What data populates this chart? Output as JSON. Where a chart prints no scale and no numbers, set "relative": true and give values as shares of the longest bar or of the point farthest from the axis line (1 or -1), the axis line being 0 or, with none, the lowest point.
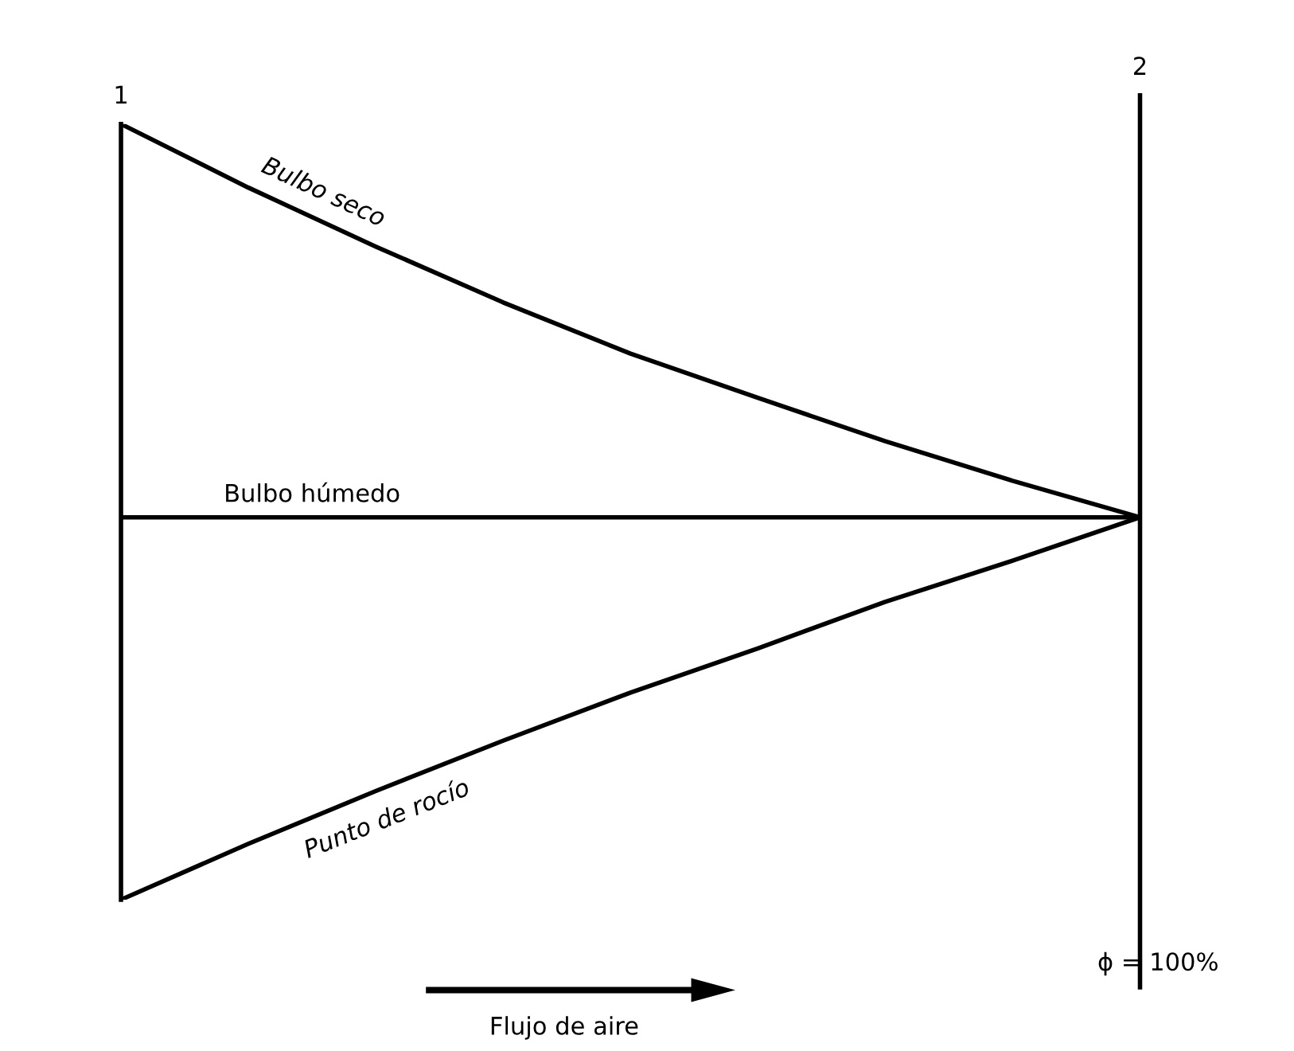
{
  "chart_data": {
    "type": "line",
    "relative": true,
    "tick_labels": false,
    "legend": false,
    "marker": "none",
    "line_style": "solid",
    "categories": [
      null,
      null,
      null,
      null,
      null,
      null,
      null,
      null,
      null
    ],
    "series": [
      {
        "name": "Bulbo seco",
        "color": "#000000",
        "values": [
          1.0,
          0.918,
          0.842,
          0.77,
          0.704,
          0.647,
          0.591,
          0.54,
          0.493
        ]
      },
      {
        "name": "Bulbo húmedo",
        "color": "#000000",
        "values": [
          0.493,
          0.493,
          0.493,
          0.493,
          0.493,
          0.493,
          0.493,
          0.493,
          0.493
        ]
      },
      {
        "name": "Punto de rocío",
        "color": "#000000",
        "values": [
          0,
          0.072,
          0.14,
          0.205,
          0.267,
          0.324,
          0.384,
          0.437,
          0.493
        ]
      }
    ],
    "annotations": [
      "1",
      "2",
      "ϕ = 100%",
      "Flujo de aire"
    ]
  }
}
